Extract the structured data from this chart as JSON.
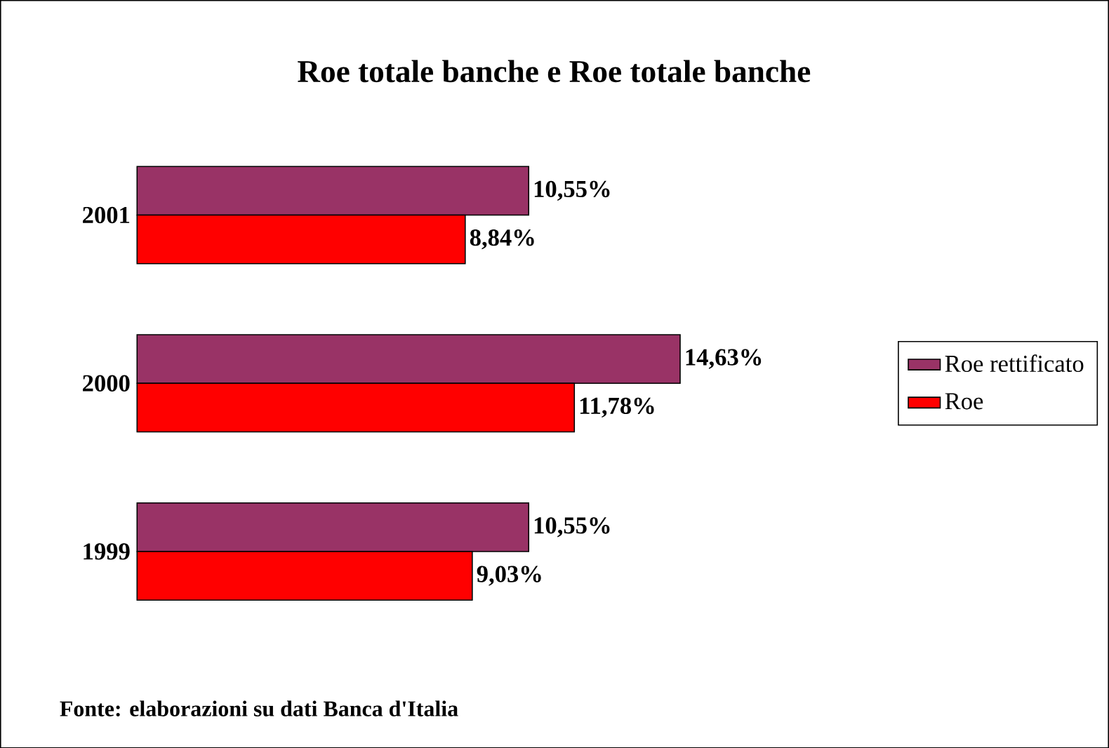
{
  "chart_data": {
    "type": "bar",
    "orientation": "horizontal",
    "title": "Roe totale banche e Roe totale banche",
    "categories": [
      "2001",
      "2000",
      "1999"
    ],
    "series": [
      {
        "name": "Roe rettificato",
        "color": "#993366",
        "values": [
          10.55,
          14.63,
          10.55
        ],
        "value_labels": [
          "10,55%",
          "14,63%",
          "10,55%"
        ]
      },
      {
        "name": "Roe",
        "color": "#ff0000",
        "values": [
          8.84,
          11.78,
          9.03
        ],
        "value_labels": [
          "8,84%",
          "11,78%",
          "9,03%"
        ]
      }
    ],
    "legend": "right",
    "annotations": [
      "Fonte: elaborazioni su dati Banca d'Italia"
    ]
  }
}
